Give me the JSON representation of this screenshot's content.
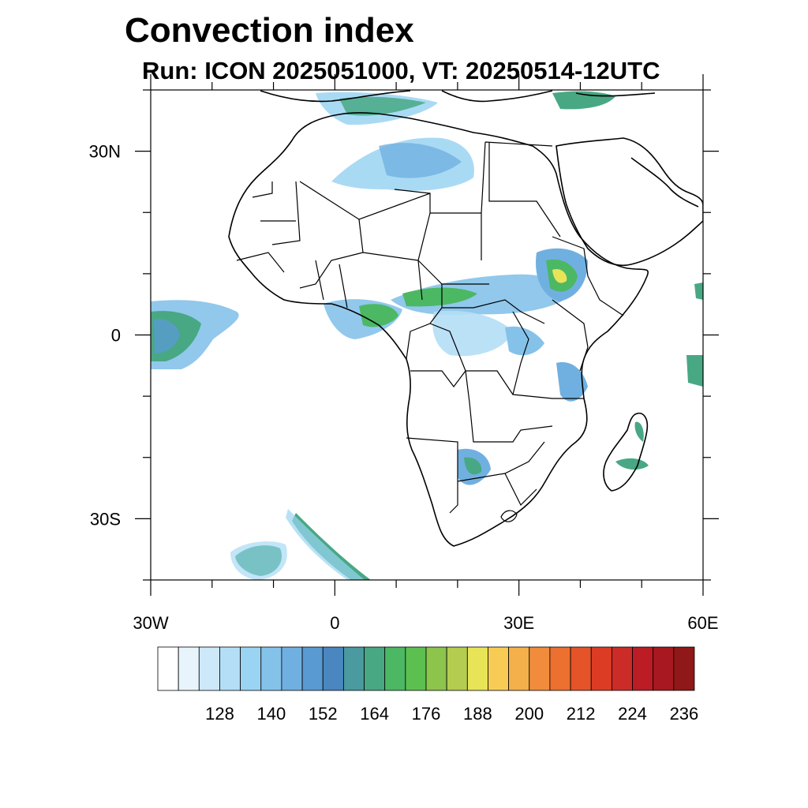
{
  "title": "Convection index",
  "subtitle": "Run: ICON 2025051000,  VT: 20250514-12UTC",
  "map": {
    "lon_range": [
      -30,
      60
    ],
    "lat_range": [
      -40,
      40
    ],
    "lat_ticks": [
      {
        "value": 30,
        "label": "30N"
      },
      {
        "value": 0,
        "label": "0"
      },
      {
        "value": -30,
        "label": "30S"
      }
    ],
    "lon_ticks": [
      {
        "value": -30,
        "label": "30W"
      },
      {
        "value": 0,
        "label": "0"
      },
      {
        "value": 30,
        "label": "30E"
      },
      {
        "value": 60,
        "label": "60E"
      }
    ]
  },
  "colorbar": {
    "colors": [
      "#ffffff",
      "#e8f4fc",
      "#cde8f8",
      "#b4def6",
      "#9ad4f2",
      "#85c2ea",
      "#70b0e0",
      "#5a9ad2",
      "#4a86c0",
      "#4a9aa0",
      "#48a884",
      "#4cb864",
      "#5cc050",
      "#8cc44c",
      "#b4cc50",
      "#e8e458",
      "#f8cc54",
      "#f4b04a",
      "#f08c3c",
      "#ec7030",
      "#e45428",
      "#dc3c24",
      "#cc2c28",
      "#bc1c24",
      "#a81820",
      "#901818"
    ],
    "labels": [
      "128",
      "140",
      "152",
      "164",
      "176",
      "188",
      "200",
      "212",
      "224",
      "236"
    ]
  }
}
